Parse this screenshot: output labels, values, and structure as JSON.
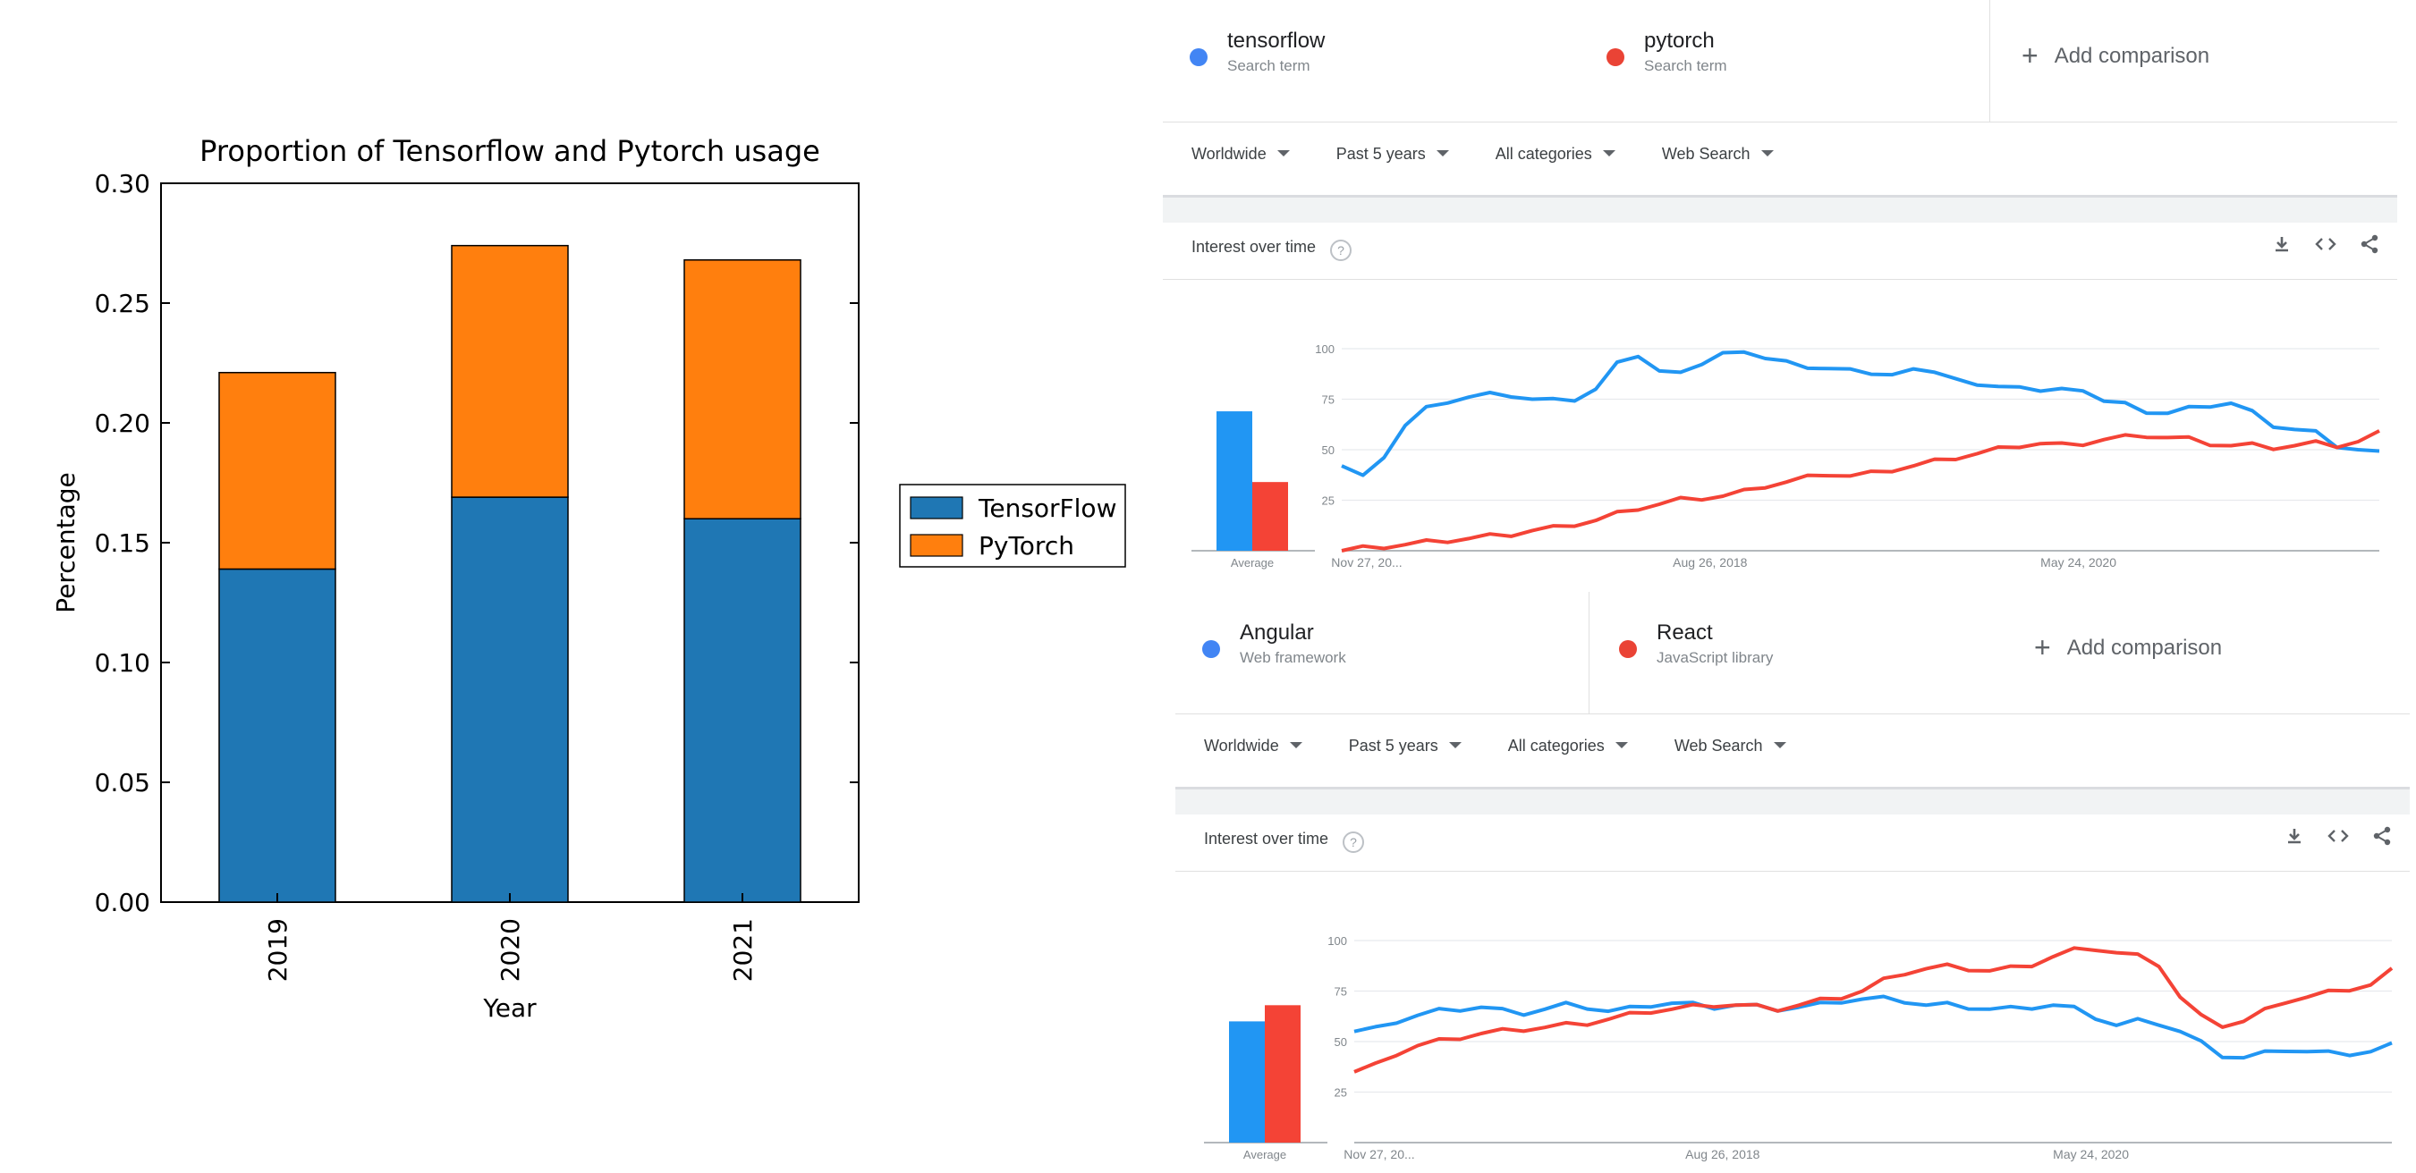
{
  "chart_data": [
    {
      "type": "bar",
      "stacked": true,
      "title": "Proportion of Tensorflow and Pytorch usage",
      "xlabel": "Year",
      "ylabel": "Percentage",
      "categories": [
        "2019",
        "2020",
        "2021"
      ],
      "series": [
        {
          "name": "TensorFlow",
          "values": [
            0.139,
            0.169,
            0.16
          ],
          "color": "#1f77b4"
        },
        {
          "name": "PyTorch",
          "values": [
            0.082,
            0.105,
            0.108
          ],
          "color": "#ff7f0e"
        }
      ],
      "ylim": [
        0,
        0.3
      ],
      "yticks": [
        "0.00",
        "0.05",
        "0.10",
        "0.15",
        "0.20",
        "0.25",
        "0.30"
      ],
      "legend": "right"
    },
    {
      "type": "line",
      "title": "Interest over time",
      "x_tick_labels": [
        "Nov 27, 20...",
        "Aug 26, 2018",
        "May 24, 2020"
      ],
      "y_tick_labels": [
        "100",
        "75",
        "50",
        "25"
      ],
      "ylim": [
        0,
        100
      ],
      "average_label": "Average",
      "series": [
        {
          "name": "tensorflow",
          "color": "#2196f3",
          "average": 69,
          "values": [
            42,
            36,
            47,
            62,
            70,
            74,
            76,
            77,
            77,
            75,
            74,
            75,
            80,
            92,
            97,
            89,
            87,
            93,
            98,
            97,
            96,
            94,
            89,
            91,
            90,
            86,
            88,
            90,
            87,
            86,
            82,
            80,
            82,
            79,
            79,
            80,
            74,
            72,
            69,
            68,
            70,
            72,
            73,
            68,
            62,
            60,
            58,
            52,
            50,
            48
          ]
        },
        {
          "name": "pytorch",
          "color": "#f44336",
          "average": 34,
          "values": [
            0,
            1,
            2,
            3,
            4,
            5,
            6,
            7,
            8,
            10,
            11,
            13,
            15,
            18,
            21,
            23,
            25,
            26,
            27,
            29,
            32,
            34,
            36,
            38,
            37,
            38,
            40,
            42,
            44,
            46,
            48,
            50,
            52,
            53,
            52,
            53,
            55,
            56,
            57,
            56,
            55,
            53,
            52,
            52,
            51,
            52,
            53,
            52,
            54,
            58
          ]
        }
      ]
    },
    {
      "type": "line",
      "title": "Interest over time",
      "x_tick_labels": [
        "Nov 27, 20...",
        "Aug 26, 2018",
        "May 24, 2020"
      ],
      "y_tick_labels": [
        "100",
        "75",
        "50",
        "25"
      ],
      "ylim": [
        0,
        100
      ],
      "average_label": "Average",
      "series": [
        {
          "name": "Angular",
          "color": "#2196f3",
          "average": 60,
          "values": [
            55,
            56,
            60,
            63,
            65,
            66,
            67,
            65,
            64,
            66,
            68,
            67,
            65,
            66,
            68,
            69,
            68,
            67,
            68,
            67,
            66,
            67,
            68,
            70,
            71,
            71,
            70,
            68,
            68,
            67,
            66,
            66,
            67,
            68,
            66,
            62,
            58,
            60,
            59,
            55,
            49,
            43,
            42,
            44,
            46,
            45,
            44,
            44,
            45,
            48
          ]
        },
        {
          "name": "React",
          "color": "#f44336",
          "average": 68,
          "values": [
            35,
            38,
            44,
            48,
            50,
            52,
            54,
            55,
            56,
            57,
            58,
            59,
            61,
            63,
            65,
            66,
            67,
            68,
            68,
            67,
            66,
            68,
            70,
            72,
            75,
            80,
            84,
            86,
            87,
            86,
            85,
            86,
            88,
            92,
            95,
            96,
            94,
            92,
            88,
            72,
            62,
            58,
            60,
            65,
            70,
            72,
            74,
            76,
            78,
            85
          ]
        }
      ]
    }
  ],
  "trends1": {
    "terms": [
      {
        "name": "tensorflow",
        "sub": "Search term"
      },
      {
        "name": "pytorch",
        "sub": "Search term"
      }
    ],
    "add": "Add comparison",
    "filters": [
      "Worldwide",
      "Past 5 years",
      "All categories",
      "Web Search"
    ],
    "panel_title": "Interest over time"
  },
  "trends2": {
    "terms": [
      {
        "name": "Angular",
        "sub": "Web framework"
      },
      {
        "name": "React",
        "sub": "JavaScript library"
      }
    ],
    "add": "Add comparison",
    "filters": [
      "Worldwide",
      "Past 5 years",
      "All categories",
      "Web Search"
    ],
    "panel_title": "Interest over time"
  },
  "colors": {
    "blue_dot": "#4285f4",
    "red_dot": "#ea4335"
  }
}
